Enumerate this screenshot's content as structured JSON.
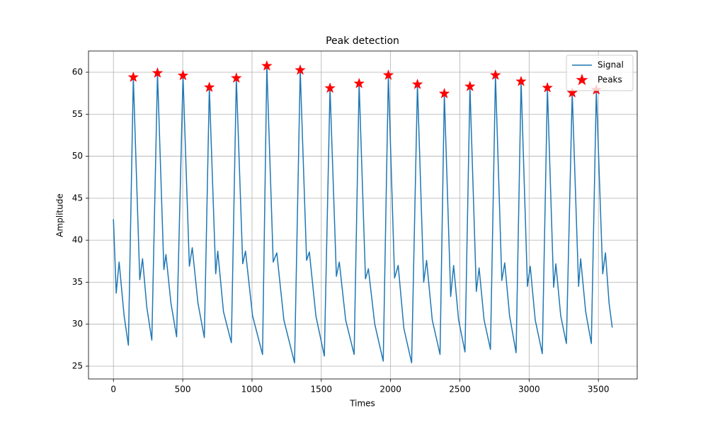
{
  "chart_data": {
    "type": "line",
    "title": "Peak detection",
    "x_label": "Times",
    "y_label": "Amplitude",
    "xlim": [
      -180,
      3780
    ],
    "ylim": [
      23.48,
      62.53
    ],
    "xticks": [
      0,
      500,
      1000,
      1500,
      2000,
      2500,
      3000,
      3500
    ],
    "yticks": [
      25,
      30,
      35,
      40,
      45,
      50,
      55,
      60
    ],
    "grid": true,
    "legend": "upper right",
    "series": [
      {
        "name": "Signal",
        "color": "#1f77b4",
        "type": "line",
        "x": [
          0,
          20,
          41,
          77,
          108,
          143.5,
          190,
          210,
          241,
          277,
          318,
          364,
          379,
          415,
          456,
          502,
          548,
          569,
          610,
          656,
          692,
          738,
          753,
          794,
          851,
          887,
          933,
          953,
          1004,
          1076,
          1107,
          1153,
          1179,
          1230,
          1307,
          1348,
          1394,
          1414,
          1461,
          1522,
          1563,
          1609,
          1630,
          1676,
          1737,
          1773,
          1819,
          1840,
          1886,
          1947,
          1984,
          2029,
          2055,
          2096,
          2152,
          2194,
          2239,
          2260,
          2301,
          2357,
          2388,
          2434,
          2455,
          2491,
          2537,
          2573,
          2619,
          2639,
          2675,
          2721,
          2757,
          2803,
          2824,
          2859,
          2906,
          2942,
          2988,
          3008,
          3044,
          3095,
          3132,
          3177,
          3193,
          3228,
          3269,
          3311,
          3357,
          3372,
          3408,
          3449,
          3485,
          3531,
          3551,
          3577,
          3600
        ],
        "values": [
          42.5,
          33.7,
          37.4,
          31,
          27.5,
          59.4,
          35.3,
          37.8,
          32,
          28.1,
          59.9,
          36.5,
          38.3,
          32.5,
          28.5,
          59.6,
          36.9,
          39.1,
          32.5,
          28.4,
          58.2,
          36.0,
          38.7,
          31.5,
          27.8,
          59.3,
          37.2,
          38.7,
          31,
          26.4,
          60.75,
          37.4,
          38.5,
          30.5,
          25.4,
          60.25,
          37.6,
          38.6,
          31,
          26.2,
          58.1,
          35.7,
          37.4,
          30.5,
          26.4,
          58.65,
          35.4,
          36.6,
          30,
          25.6,
          59.65,
          35.5,
          37.0,
          29.5,
          25.4,
          58.55,
          35.0,
          37.6,
          30.5,
          26.4,
          57.45,
          33.3,
          37.0,
          30.5,
          26.7,
          58.3,
          33.9,
          36.7,
          30.5,
          27.0,
          59.65,
          35.2,
          37.3,
          31,
          26.6,
          58.9,
          34.5,
          36.9,
          30.5,
          26.5,
          58.15,
          34.4,
          37.2,
          31,
          27.7,
          57.55,
          34.5,
          37.8,
          31.5,
          27.7,
          57.9,
          36.0,
          38.5,
          32.5,
          29.6
        ]
      },
      {
        "name": "Peaks",
        "color": "#ff0000",
        "type": "scatter",
        "marker": "star",
        "x": [
          143.5,
          318,
          502,
          692,
          887,
          1107,
          1348,
          1563,
          1773,
          1984,
          2194,
          2388,
          2573,
          2757,
          2942,
          3132,
          3311,
          3485
        ],
        "values": [
          59.4,
          59.9,
          59.6,
          58.2,
          59.3,
          60.75,
          60.25,
          58.1,
          58.65,
          59.65,
          58.55,
          57.45,
          58.3,
          59.65,
          58.9,
          58.15,
          57.55,
          57.9
        ]
      }
    ]
  }
}
